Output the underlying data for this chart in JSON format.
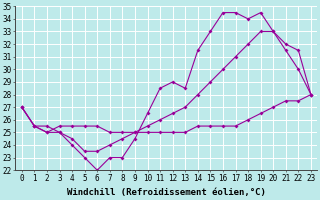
{
  "xlabel": "Windchill (Refroidissement éolien,°C)",
  "x_hours": [
    0,
    1,
    2,
    3,
    4,
    5,
    6,
    7,
    8,
    9,
    10,
    11,
    12,
    13,
    14,
    15,
    16,
    17,
    18,
    19,
    20,
    21,
    22,
    23
  ],
  "line_jagged": [
    27,
    25.5,
    25.5,
    25,
    24,
    23,
    22,
    23,
    23,
    24.5,
    26.5,
    28.5,
    29,
    28.5,
    31.5,
    33,
    34.5,
    34.5,
    34,
    34.5,
    33,
    31.5,
    30,
    28
  ],
  "line_diagonal": [
    27,
    25.5,
    25,
    25,
    24.5,
    23.5,
    23.5,
    24,
    24.5,
    25,
    25.5,
    26,
    26.5,
    27,
    28,
    29,
    30,
    31,
    32,
    33,
    33,
    32,
    31.5,
    28
  ],
  "line_flat": [
    27,
    25.5,
    25,
    25.5,
    25.5,
    25.5,
    25.5,
    25,
    25,
    25,
    25,
    25,
    25,
    25,
    25.5,
    25.5,
    25.5,
    25.5,
    26,
    26.5,
    27,
    27.5,
    27.5,
    28
  ],
  "ylim": [
    22,
    35
  ],
  "xlim_min": -0.5,
  "xlim_max": 23.5,
  "line_color": "#990099",
  "bg_color": "#beeaea",
  "grid_color": "#ffffff",
  "tick_fontsize": 5.5,
  "xlabel_fontsize": 6.5
}
